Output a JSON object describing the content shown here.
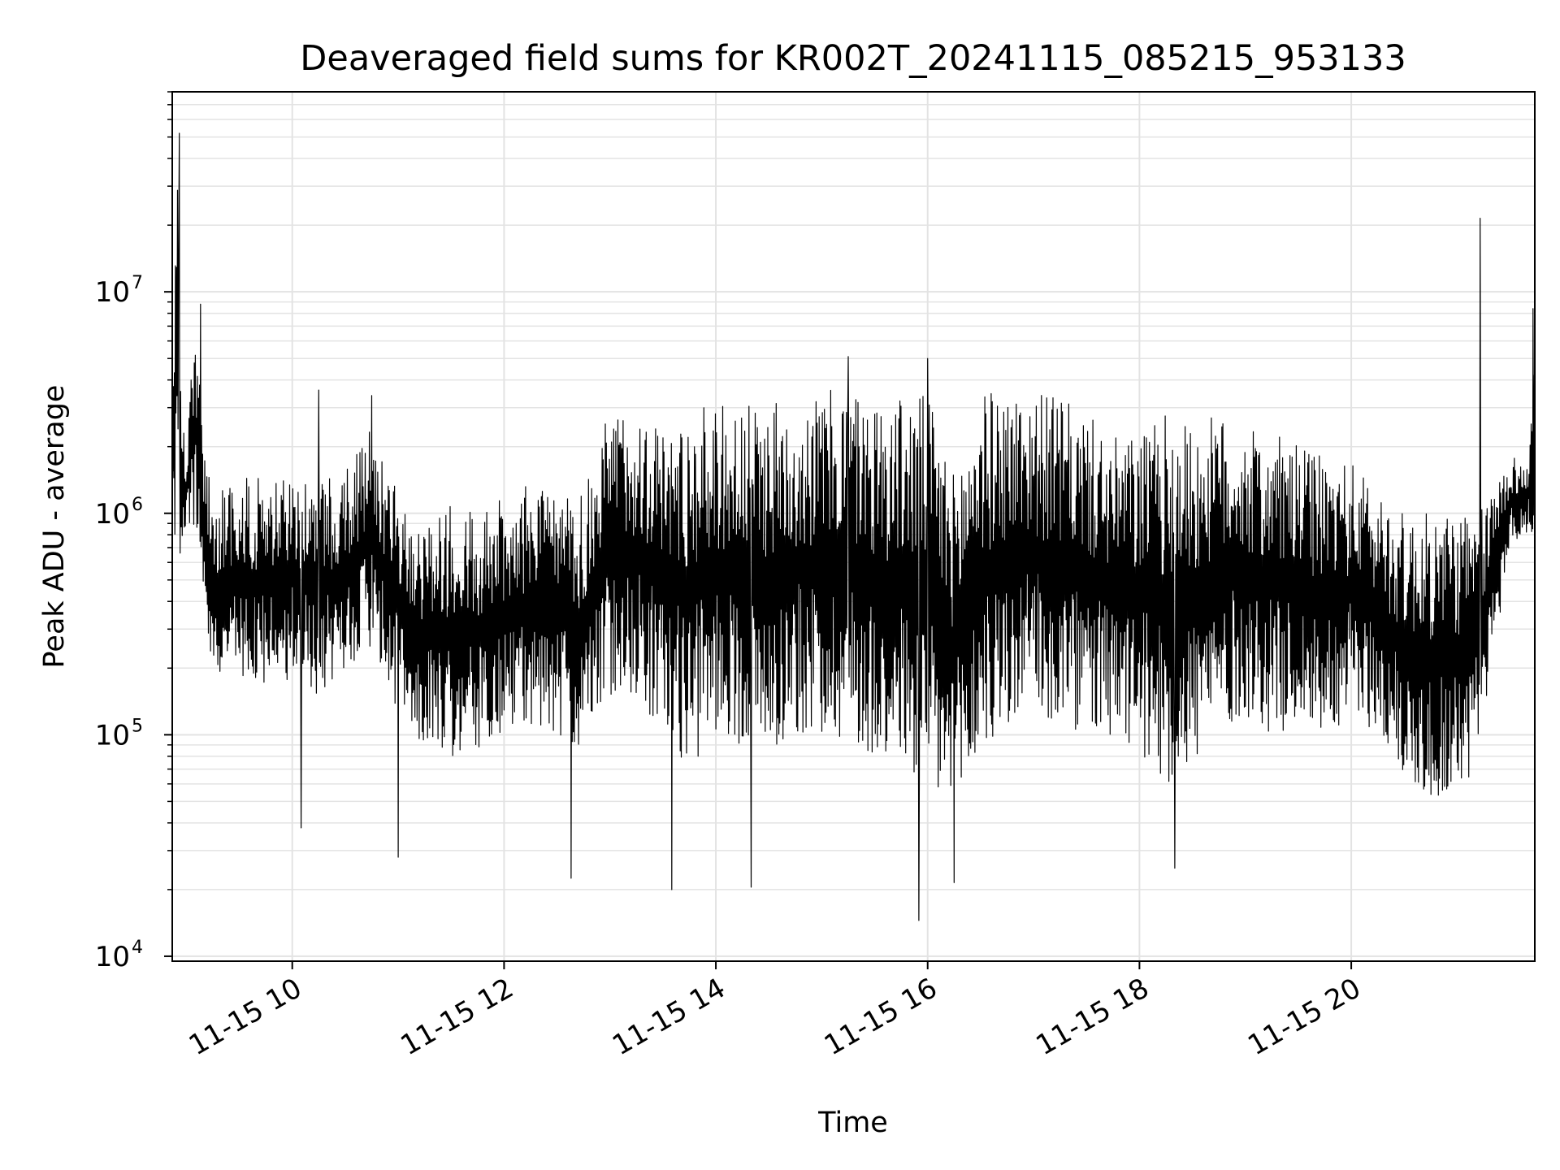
{
  "chart_data": {
    "type": "line",
    "title": "Deaveraged field sums for KR002T_20241115_085215_953133",
    "xlabel": "Time",
    "ylabel": "Peak ADU - average",
    "yscale": "log",
    "ylim": [
      9500,
      80000000
    ],
    "xlim": [
      "2024-11-15 08:52",
      "2024-11-15 21:44"
    ],
    "grid": true,
    "line_color": "#000000",
    "grid_color": "#e3e3e3",
    "x_ticks": [
      {
        "value": "2024-11-15 10:00",
        "label": "11-15 10"
      },
      {
        "value": "2024-11-15 12:00",
        "label": "11-15 12"
      },
      {
        "value": "2024-11-15 14:00",
        "label": "11-15 14"
      },
      {
        "value": "2024-11-15 16:00",
        "label": "11-15 16"
      },
      {
        "value": "2024-11-15 18:00",
        "label": "11-15 18"
      },
      {
        "value": "2024-11-15 20:00",
        "label": "11-15 20"
      }
    ],
    "y_ticks": [
      {
        "value": 10000,
        "base": "10",
        "exp": "4"
      },
      {
        "value": 100000,
        "base": "10",
        "exp": "5"
      },
      {
        "value": 1000000,
        "base": "10",
        "exp": "6"
      },
      {
        "value": 10000000,
        "base": "10",
        "exp": "7"
      }
    ],
    "series": [
      {
        "x": [
          "2024-11-15 08:52",
          "2024-11-15 08:55",
          "2024-11-15 08:57",
          "2024-11-15 09:00",
          "2024-11-15 09:05",
          "2024-11-15 09:10",
          "2024-11-15 09:15",
          "2024-11-15 09:20",
          "2024-11-15 09:30",
          "2024-11-15 09:40",
          "2024-11-15 09:50",
          "2024-11-15 10:00",
          "2024-11-15 10:15",
          "2024-11-15 10:30",
          "2024-11-15 10:45",
          "2024-11-15 11:00",
          "2024-11-15 11:15",
          "2024-11-15 11:30",
          "2024-11-15 11:45",
          "2024-11-15 12:00",
          "2024-11-15 12:15",
          "2024-11-15 12:30",
          "2024-11-15 12:45",
          "2024-11-15 13:00",
          "2024-11-15 13:15",
          "2024-11-15 13:30",
          "2024-11-15 13:45",
          "2024-11-15 14:00",
          "2024-11-15 14:15",
          "2024-11-15 14:30",
          "2024-11-15 14:45",
          "2024-11-15 15:00",
          "2024-11-15 15:15",
          "2024-11-15 15:30",
          "2024-11-15 15:45",
          "2024-11-15 16:00",
          "2024-11-15 16:15",
          "2024-11-15 16:30",
          "2024-11-15 16:45",
          "2024-11-15 17:00",
          "2024-11-15 17:15",
          "2024-11-15 17:30",
          "2024-11-15 17:45",
          "2024-11-15 18:00",
          "2024-11-15 18:15",
          "2024-11-15 18:30",
          "2024-11-15 18:45",
          "2024-11-15 19:00",
          "2024-11-15 19:15",
          "2024-11-15 19:30",
          "2024-11-15 19:45",
          "2024-11-15 20:00",
          "2024-11-15 20:15",
          "2024-11-15 20:30",
          "2024-11-15 20:45",
          "2024-11-15 21:00",
          "2024-11-15 21:10",
          "2024-11-15 21:20",
          "2024-11-15 21:30",
          "2024-11-15 21:40",
          "2024-11-15 21:44"
        ],
        "low": [
          600000,
          500000,
          700000,
          800000,
          900000,
          400000,
          150000,
          200000,
          180000,
          150000,
          170000,
          180000,
          150000,
          180000,
          250000,
          120000,
          90000,
          80000,
          80000,
          100000,
          110000,
          100000,
          80000,
          150000,
          150000,
          100000,
          70000,
          100000,
          90000,
          80000,
          100000,
          100000,
          90000,
          80000,
          70000,
          50000,
          40000,
          80000,
          100000,
          120000,
          100000,
          100000,
          90000,
          80000,
          60000,
          70000,
          100000,
          120000,
          100000,
          110000,
          100000,
          120000,
          100000,
          60000,
          50000,
          50000,
          70000,
          200000,
          700000,
          800000,
          700000
        ],
        "high": [
          4000000,
          50000000,
          3000000,
          1800000,
          8000000,
          2000000,
          1200000,
          1300000,
          1400000,
          1500000,
          1400000,
          1500000,
          1400000,
          1600000,
          2500000,
          1200000,
          900000,
          1100000,
          1000000,
          1200000,
          1400000,
          1200000,
          1200000,
          3000000,
          3000000,
          2500000,
          2800000,
          3200000,
          3000000,
          3200000,
          3300000,
          3500000,
          3800000,
          3300000,
          3400000,
          3500000,
          1500000,
          3500000,
          3600000,
          3600000,
          3300000,
          2800000,
          2200000,
          2300000,
          2800000,
          2500000,
          2800000,
          2400000,
          2300000,
          2000000,
          1800000,
          1700000,
          1300000,
          1000000,
          1000000,
          1100000,
          900000,
          1300000,
          1900000,
          1600000,
          8000000
        ],
        "spikes": [
          {
            "x": "2024-11-15 08:56",
            "value": 52000000
          },
          {
            "x": "2024-11-15 09:08",
            "value": 8800000
          },
          {
            "x": "2024-11-15 10:05",
            "value": 38000
          },
          {
            "x": "2024-11-15 10:15",
            "value": 3600000
          },
          {
            "x": "2024-11-15 10:45",
            "value": 3400000
          },
          {
            "x": "2024-11-15 11:00",
            "value": 28000
          },
          {
            "x": "2024-11-15 12:38",
            "value": 22500
          },
          {
            "x": "2024-11-15 13:35",
            "value": 20000
          },
          {
            "x": "2024-11-15 14:20",
            "value": 20500
          },
          {
            "x": "2024-11-15 15:15",
            "value": 5100000
          },
          {
            "x": "2024-11-15 15:55",
            "value": 14500
          },
          {
            "x": "2024-11-15 16:00",
            "value": 5000000
          },
          {
            "x": "2024-11-15 16:15",
            "value": 21500
          },
          {
            "x": "2024-11-15 18:20",
            "value": 25000
          },
          {
            "x": "2024-11-15 21:13",
            "value": 21500000
          },
          {
            "x": "2024-11-15 21:43",
            "value": 8400000
          }
        ]
      }
    ]
  }
}
